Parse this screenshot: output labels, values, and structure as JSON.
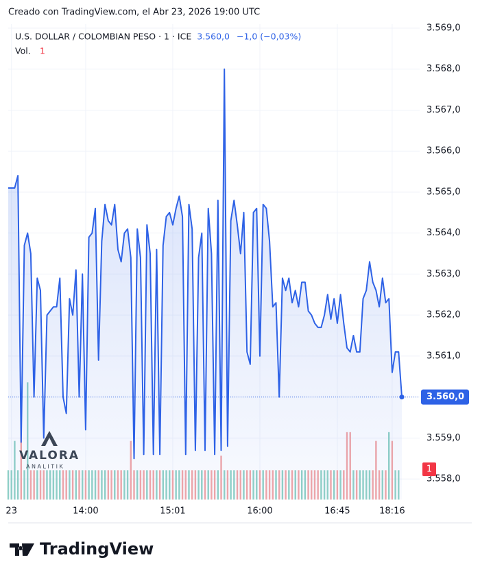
{
  "chart_data": {
    "type": "line",
    "header": "Creado con TradingView.com, el Abr 23, 2026 19:00 UTC",
    "symbol": "U.S. DOLLAR / COLOMBIAN PESO · 1 · ICE",
    "last": {
      "value": 3560.0,
      "label": "3.560,0"
    },
    "change": "−1,0 (−0,03%)",
    "volume_label": "Vol.",
    "volume_value": "1",
    "watermark": [
      "VALORA",
      "ANALITIK"
    ],
    "brand": "TradingView",
    "color": "#2e62e6",
    "values": [
      3565.1,
      3565.1,
      3565.1,
      3565.4,
      3558.9,
      3563.7,
      3564.0,
      3563.5,
      3560.0,
      3562.9,
      3562.6,
      3559.0,
      3562.0,
      3562.1,
      3562.2,
      3562.2,
      3562.9,
      3560.0,
      3559.6,
      3562.4,
      3562.0,
      3563.1,
      3560.0,
      3563.0,
      3559.2,
      3563.9,
      3564.0,
      3564.6,
      3560.9,
      3563.8,
      3564.7,
      3564.3,
      3564.2,
      3564.7,
      3563.6,
      3563.3,
      3564.0,
      3564.1,
      3563.4,
      3558.5,
      3564.1,
      3563.4,
      3558.6,
      3564.2,
      3563.5,
      3558.6,
      3563.6,
      3558.6,
      3563.7,
      3564.4,
      3564.5,
      3564.2,
      3564.6,
      3564.9,
      3564.4,
      3558.6,
      3564.7,
      3564.1,
      3558.7,
      3563.4,
      3564.0,
      3558.7,
      3564.6,
      3563.5,
      3558.6,
      3564.8,
      3558.7,
      3568.0,
      3558.8,
      3564.3,
      3564.8,
      3564.2,
      3563.5,
      3564.5,
      3561.1,
      3560.8,
      3564.5,
      3564.6,
      3561.0,
      3564.7,
      3564.6,
      3563.8,
      3562.2,
      3562.3,
      3560.0,
      3562.9,
      3562.6,
      3562.9,
      3562.3,
      3562.6,
      3562.2,
      3562.8,
      3562.8,
      3562.1,
      3562.0,
      3561.8,
      3561.7,
      3561.7,
      3562.0,
      3562.5,
      3561.9,
      3562.4,
      3561.8,
      3562.5,
      3561.8,
      3561.2,
      3561.1,
      3561.5,
      3561.1,
      3561.1,
      3562.4,
      3562.6,
      3563.3,
      3562.8,
      3562.6,
      3562.2,
      3562.9,
      3562.3,
      3562.4,
      3560.6,
      3561.1,
      3561.1,
      3560.0
    ],
    "volume": {
      "up_color": "#92d2c6",
      "down_color": "#f3a7a7",
      "ylim": [
        0,
        4.1
      ],
      "values": [
        1,
        1,
        2,
        1,
        3,
        1,
        4,
        1,
        1,
        1,
        1,
        1,
        1,
        1,
        1,
        1,
        1,
        1,
        1,
        1,
        1,
        1,
        1,
        1,
        1,
        1,
        1,
        1,
        1,
        1,
        1,
        1,
        1,
        1,
        1,
        1,
        1,
        1,
        2,
        1,
        1,
        1,
        1,
        1,
        1,
        1,
        1,
        1,
        1,
        1,
        1,
        1,
        1,
        1,
        1,
        1,
        1,
        1,
        1,
        1,
        1,
        1,
        1,
        1,
        1,
        1,
        1.5,
        1,
        1,
        1,
        1,
        1,
        1,
        1,
        1,
        1,
        1,
        1,
        1,
        1,
        1,
        1,
        1,
        1,
        1,
        1,
        1,
        1,
        1,
        1,
        1,
        1,
        1,
        1,
        1,
        1,
        1,
        1,
        1,
        1,
        1,
        1,
        1,
        1,
        1,
        2.3,
        2.3,
        1,
        1,
        1,
        1,
        1,
        1,
        1,
        2,
        1,
        1,
        1,
        2.3,
        2,
        1,
        1
      ]
    },
    "xlim": [
      0,
      122
    ],
    "xticks": [
      {
        "value": 1,
        "label": "23"
      },
      {
        "value": 24,
        "label": "14:00"
      },
      {
        "value": 51,
        "label": "15:01"
      },
      {
        "value": 78,
        "label": "16:00"
      },
      {
        "value": 102,
        "label": "16:45"
      },
      {
        "value": 119,
        "label": "18:16"
      }
    ],
    "ylim": [
      3557.5,
      3569.1
    ],
    "yticks": [
      {
        "value": 3558,
        "label": "3.558,0"
      },
      {
        "value": 3559,
        "label": "3.559,0"
      },
      {
        "value": 3560,
        "label": "3.560,0"
      },
      {
        "value": 3561,
        "label": "3.561,0"
      },
      {
        "value": 3562,
        "label": "3.562,0"
      },
      {
        "value": 3563,
        "label": "3.563,0"
      },
      {
        "value": 3564,
        "label": "3.564,0"
      },
      {
        "value": 3565,
        "label": "3.565,0"
      },
      {
        "value": 3566,
        "label": "3.566,0"
      },
      {
        "value": 3567,
        "label": "3.567,0"
      },
      {
        "value": 3568,
        "label": "3.568,0"
      },
      {
        "value": 3569,
        "label": "3.569,0"
      }
    ],
    "grid": true
  }
}
